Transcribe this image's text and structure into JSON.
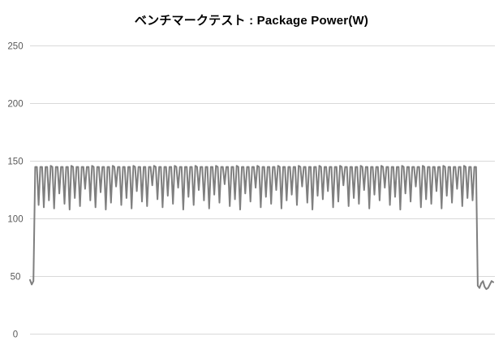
{
  "chart_data": {
    "type": "line",
    "title": "ベンチマークテスト : Package Power(W)",
    "xlabel": "",
    "ylabel": "",
    "ylim": [
      0,
      250
    ],
    "yticks": [
      0,
      50,
      100,
      150,
      200,
      250
    ],
    "xticks": [],
    "grid": true,
    "legend_position": "none",
    "colors": {
      "line": "#7f7f7f",
      "gridline": "#d9d9d9",
      "tick_label": "#595959",
      "title": "#000000",
      "background": "#ffffff"
    },
    "series": [
      {
        "name": "Package Power (W)",
        "values": [
          47,
          43,
          46,
          145,
          145,
          112,
          145,
          145,
          110,
          145,
          145,
          116,
          146,
          145,
          109,
          145,
          145,
          122,
          145,
          145,
          113,
          145,
          145,
          108,
          146,
          145,
          118,
          145,
          145,
          111,
          145,
          145,
          126,
          145,
          145,
          116,
          146,
          145,
          110,
          145,
          145,
          123,
          145,
          145,
          108,
          145,
          145,
          114,
          146,
          145,
          128,
          145,
          145,
          112,
          145,
          145,
          118,
          145,
          145,
          109,
          146,
          145,
          124,
          145,
          145,
          115,
          145,
          145,
          111,
          145,
          145,
          129,
          146,
          145,
          117,
          145,
          145,
          110,
          145,
          145,
          120,
          145,
          145,
          113,
          146,
          145,
          127,
          145,
          145,
          108,
          145,
          145,
          119,
          145,
          145,
          112,
          146,
          145,
          125,
          145,
          145,
          116,
          145,
          145,
          109,
          145,
          145,
          121,
          146,
          145,
          114,
          145,
          145,
          130,
          145,
          145,
          111,
          145,
          145,
          117,
          146,
          145,
          108,
          145,
          145,
          122,
          145,
          145,
          115,
          145,
          145,
          127,
          146,
          145,
          110,
          145,
          145,
          119,
          145,
          145,
          113,
          145,
          145,
          125,
          146,
          145,
          109,
          145,
          145,
          116,
          145,
          145,
          121,
          145,
          145,
          112,
          146,
          145,
          128,
          145,
          145,
          114,
          145,
          145,
          108,
          145,
          145,
          120,
          146,
          145,
          117,
          145,
          145,
          124,
          145,
          145,
          110,
          145,
          145,
          115,
          146,
          145,
          129,
          145,
          145,
          111,
          145,
          145,
          118,
          145,
          145,
          113,
          146,
          145,
          125,
          145,
          145,
          109,
          145,
          145,
          121,
          145,
          145,
          116,
          146,
          145,
          127,
          145,
          145,
          112,
          145,
          145,
          119,
          145,
          145,
          108,
          146,
          145,
          122,
          145,
          145,
          115,
          145,
          145,
          128,
          145,
          145,
          110,
          146,
          145,
          117,
          145,
          145,
          113,
          145,
          145,
          124,
          145,
          145,
          109,
          146,
          145,
          120,
          145,
          145,
          114,
          145,
          145,
          126,
          145,
          145,
          111,
          146,
          145,
          118,
          145,
          145,
          116,
          145,
          145,
          42,
          40,
          44,
          46,
          41,
          39,
          40,
          43,
          46,
          45
        ]
      }
    ]
  }
}
